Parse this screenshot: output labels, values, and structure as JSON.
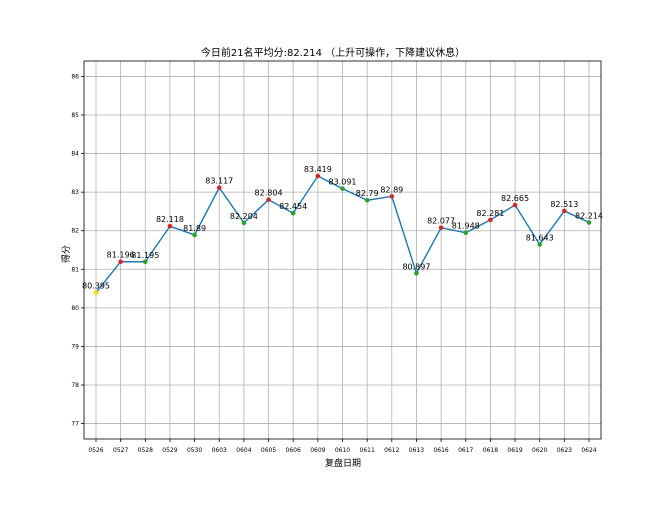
{
  "chart_data": {
    "type": "line",
    "title": "今日前21名平均分:82.214 （上升可操作，下降建议休息）",
    "xlabel": "复盘日期",
    "ylabel": "得分",
    "categories": [
      "0526",
      "0527",
      "0528",
      "0529",
      "0530",
      "0603",
      "0604",
      "0605",
      "0606",
      "0609",
      "0610",
      "0611",
      "0612",
      "0613",
      "0616",
      "0617",
      "0618",
      "0619",
      "0620",
      "0623",
      "0624"
    ],
    "values": [
      80.395,
      81.196,
      81.195,
      82.118,
      81.89,
      83.117,
      82.204,
      82.804,
      82.454,
      83.419,
      83.091,
      82.79,
      82.89,
      80.897,
      82.077,
      81.948,
      82.281,
      82.665,
      81.643,
      82.513,
      82.214
    ],
    "data_labels": [
      "80.395",
      "81.196",
      "81.195",
      "82.118",
      "81.89",
      "83.117",
      "82.204",
      "82.804",
      "82.454",
      "83.419",
      "83.091",
      "82.79",
      "82.89",
      "80.897",
      "82.077",
      "81.948",
      "82.281",
      "82.665",
      "81.643",
      "82.513",
      "82.214"
    ],
    "ylim": [
      76.6,
      86.4
    ],
    "yticks": [
      77,
      78,
      79,
      80,
      81,
      82,
      83,
      84,
      85,
      86
    ],
    "grid": true,
    "line_color": "#1f77b4",
    "marker_colors": {
      "up": "#d62728",
      "down": "#2ca02c",
      "first": "#ffd700"
    }
  }
}
